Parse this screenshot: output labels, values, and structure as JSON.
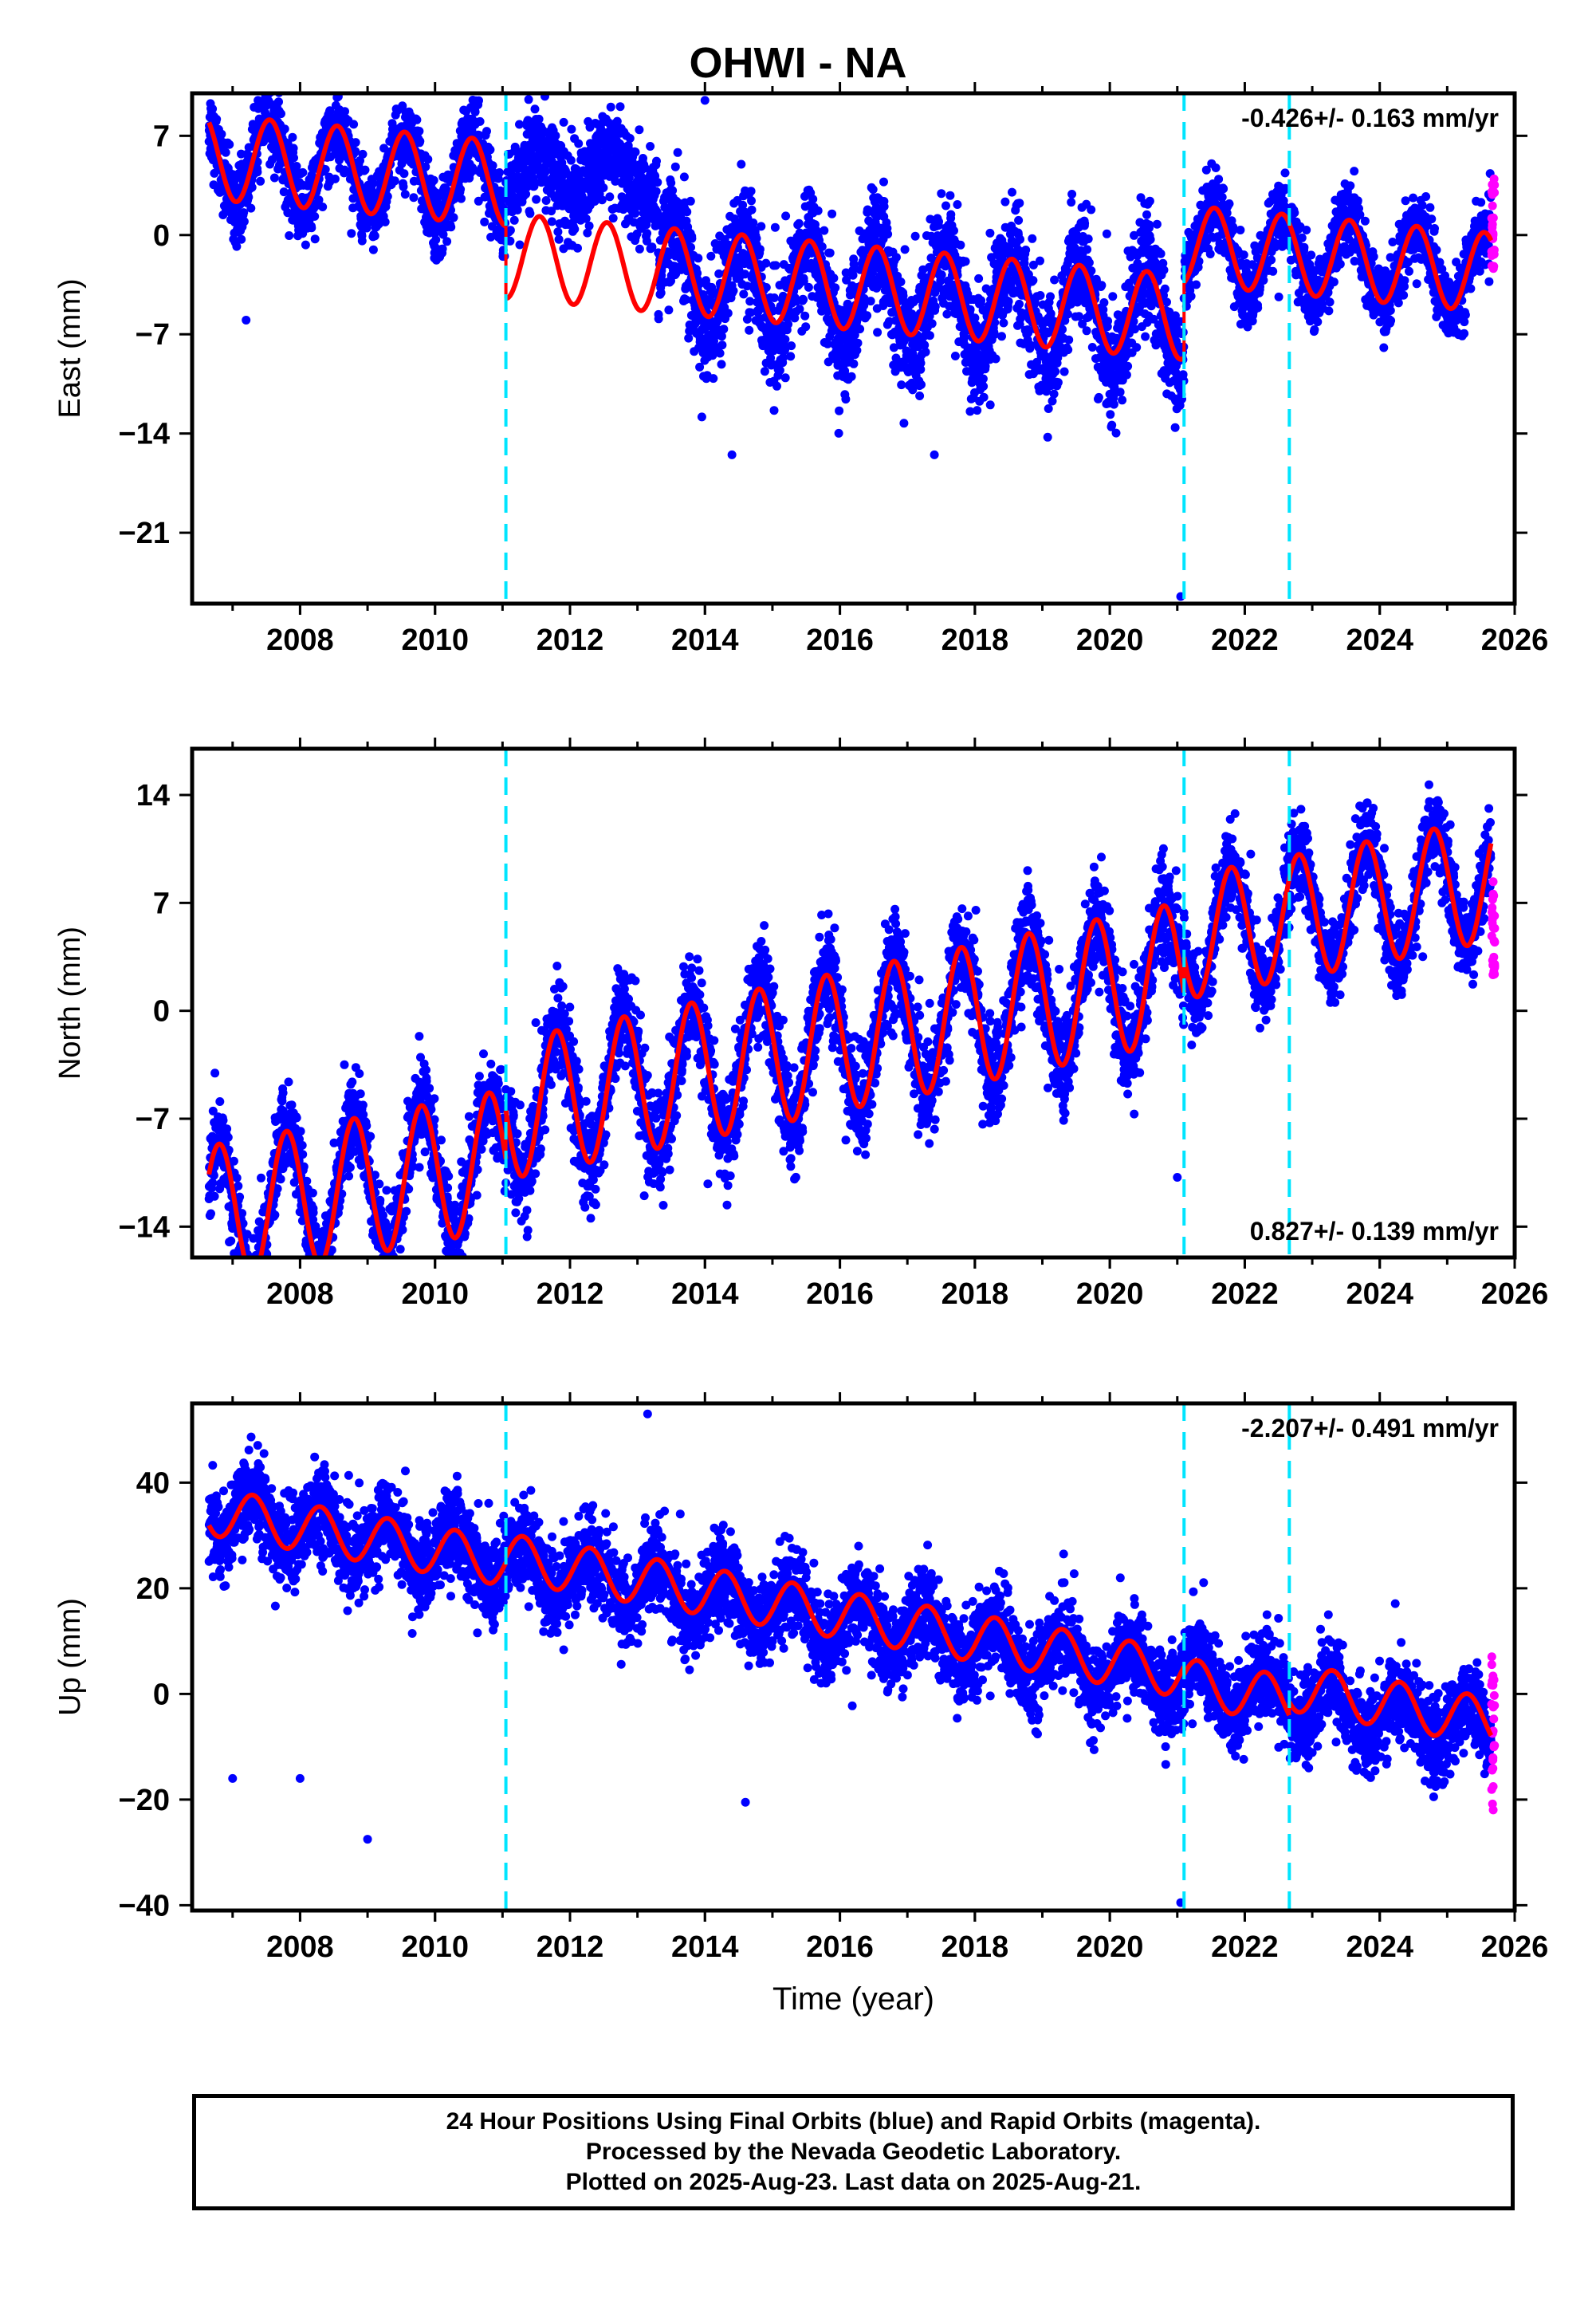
{
  "title": "OHWI - NA",
  "xlabel": "Time (year)",
  "footer": {
    "line1": "24 Hour Positions Using Final Orbits (blue) and Rapid Orbits (magenta).",
    "line2": "Processed by the Nevada Geodetic Laboratory.",
    "line3": "Plotted on 2025-Aug-23. Last data on 2025-Aug-21."
  },
  "colors": {
    "final": "#0000ff",
    "rapid": "#ff00ff",
    "model": "#ff0000",
    "event": "#00e5ff"
  },
  "chart_data": [
    {
      "type": "scatter",
      "component": "east",
      "ylabel": "East (mm)",
      "xlim": [
        2006.4,
        2026.0
      ],
      "ylim": [
        -26,
        10
      ],
      "yticks": [
        7,
        0,
        -7,
        -14,
        -21
      ],
      "xticks": [
        2008,
        2010,
        2012,
        2014,
        2016,
        2018,
        2020,
        2022,
        2024,
        2026
      ],
      "rate": "-0.426+/- 0.163 mm/yr",
      "rate_position": "top-right",
      "events": [
        2011.05,
        2021.1,
        2022.66
      ],
      "segments": [
        {
          "start": 2006.65,
          "end": 2011.05,
          "offset": 1.5,
          "trend": -0.43,
          "amplitude": 3.0,
          "phase": 0.3,
          "noise": 1.3
        },
        {
          "start": 2011.05,
          "end": 2013.3,
          "offset": 3.0,
          "trend": -0.3,
          "amplitude": 1.5,
          "phase": 0.3,
          "noise": 1.6
        },
        {
          "start": 2013.3,
          "end": 2021.1,
          "offset": -4.0,
          "trend": -0.4,
          "amplitude": 3.5,
          "phase": 0.3,
          "noise": 2.0
        },
        {
          "start": 2021.1,
          "end": 2025.65,
          "offset": 1.5,
          "trend": -0.43,
          "amplitude": 2.8,
          "phase": 0.3,
          "noise": 1.2
        }
      ],
      "model_segments": [
        {
          "start": 2006.65,
          "end": 2011.05,
          "offset": 1.5,
          "trend": -0.43,
          "amplitude": 3.0,
          "phase": 0.3
        },
        {
          "start": 2011.05,
          "end": 2021.1,
          "offset": -3.6,
          "trend": -0.43,
          "amplitude": 3.0,
          "phase": 0.3
        },
        {
          "start": 2021.1,
          "end": 2025.65,
          "offset": 1.5,
          "trend": -0.43,
          "amplitude": 2.8,
          "phase": 0.3
        }
      ],
      "outliers": [
        [
          2007.2,
          -6
        ],
        [
          2014.4,
          -15.5
        ],
        [
          2021.05,
          -25.5
        ],
        [
          2014.0,
          9.5
        ],
        [
          2017.4,
          -15.5
        ]
      ],
      "rapid": {
        "x": 2025.68,
        "center": 0.8,
        "spread": 3.2
      }
    },
    {
      "type": "scatter",
      "component": "north",
      "ylabel": "North (mm)",
      "xlim": [
        2006.4,
        2026.0
      ],
      "ylim": [
        -16,
        17
      ],
      "yticks": [
        14,
        7,
        0,
        -7,
        -14
      ],
      "xticks": [
        2008,
        2010,
        2012,
        2014,
        2016,
        2018,
        2020,
        2022,
        2024,
        2026
      ],
      "rate": "0.827+/- 0.139 mm/yr",
      "rate_position": "bottom-right",
      "events": [
        2011.05,
        2021.1,
        2022.66
      ],
      "segments": [
        {
          "start": 2006.65,
          "end": 2011.05,
          "offset": -5.5,
          "trend": 0.83,
          "amplitude": 4.5,
          "phase": 0.55,
          "noise": 1.4
        },
        {
          "start": 2011.05,
          "end": 2021.1,
          "offset": -2.0,
          "trend": 0.9,
          "amplitude": 4.5,
          "phase": 0.55,
          "noise": 1.6
        },
        {
          "start": 2021.1,
          "end": 2025.65,
          "offset": 0.5,
          "trend": 0.83,
          "amplitude": 4.0,
          "phase": 0.55,
          "noise": 1.3
        }
      ],
      "model_segments": [
        {
          "start": 2006.65,
          "end": 2011.05,
          "offset": -5.5,
          "trend": 0.83,
          "amplitude": 4.5,
          "phase": 0.55
        },
        {
          "start": 2011.05,
          "end": 2021.1,
          "offset": -2.0,
          "trend": 0.9,
          "amplitude": 4.5,
          "phase": 0.55
        },
        {
          "start": 2021.1,
          "end": 2025.65,
          "offset": 0.5,
          "trend": 0.83,
          "amplitude": 4.0,
          "phase": 0.55
        }
      ],
      "outliers": [
        [
          2006.95,
          -15
        ],
        [
          2010.15,
          -13
        ],
        [
          2013.1,
          -12
        ],
        [
          2021.0,
          -10.8
        ],
        [
          2012.9,
          -1.5
        ]
      ],
      "rapid": {
        "x": 2025.68,
        "center": 5.5,
        "spread": 3.5
      }
    },
    {
      "type": "scatter",
      "component": "up",
      "ylabel": "Up (mm)",
      "xlim": [
        2006.4,
        2026.0
      ],
      "ylim": [
        -41,
        55
      ],
      "yticks": [
        40,
        20,
        0,
        -20,
        -40
      ],
      "xticks": [
        2008,
        2010,
        2012,
        2014,
        2016,
        2018,
        2020,
        2022,
        2024,
        2026
      ],
      "rate": "-2.207+/- 0.491 mm/yr",
      "rate_position": "top-right",
      "events": [
        2011.05,
        2021.1,
        2022.66
      ],
      "segments": [
        {
          "start": 2006.65,
          "end": 2025.65,
          "offset": 14,
          "trend": -2.2,
          "amplitude": 4.5,
          "phase": 0.05,
          "noise": 4.0
        }
      ],
      "model_segments": [
        {
          "start": 2006.65,
          "end": 2011.05,
          "offset": 14,
          "trend": -2.2,
          "amplitude": 4.5,
          "phase": 0.05
        },
        {
          "start": 2011.05,
          "end": 2021.1,
          "offset": 15,
          "trend": -2.2,
          "amplitude": 4.5,
          "phase": 0.05
        },
        {
          "start": 2021.1,
          "end": 2022.66,
          "offset": 13.5,
          "trend": -2.2,
          "amplitude": 4.5,
          "phase": 0.05
        },
        {
          "start": 2022.66,
          "end": 2025.65,
          "offset": 16,
          "trend": -2.2,
          "amplitude": 4.5,
          "phase": 0.05
        }
      ],
      "outliers": [
        [
          2013.15,
          53
        ],
        [
          2007.0,
          -16
        ],
        [
          2008.0,
          -16
        ],
        [
          2009.0,
          -27.5
        ],
        [
          2021.05,
          -39.5
        ],
        [
          2012.2,
          35
        ],
        [
          2013.2,
          31
        ],
        [
          2014.6,
          -20.5
        ]
      ],
      "rapid": {
        "x": 2025.68,
        "center": -8,
        "spread": 16
      }
    }
  ]
}
